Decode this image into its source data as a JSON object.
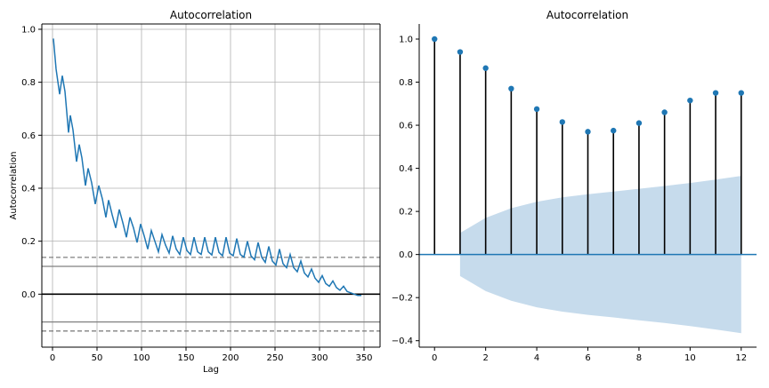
{
  "chart_data": [
    {
      "type": "line",
      "title": "Autocorrelation",
      "xlabel": "Lag",
      "ylabel": "Autocorrelation",
      "xlim": [
        -12,
        368
      ],
      "ylim": [
        -0.2,
        1.02
      ],
      "xticks": [
        0,
        50,
        100,
        150,
        200,
        250,
        300,
        350
      ],
      "yticks": [
        0.0,
        0.2,
        0.4,
        0.6,
        0.8,
        1.0
      ],
      "xtick_labels": [
        "0",
        "50",
        "100",
        "150",
        "200",
        "250",
        "300",
        "350"
      ],
      "ytick_labels": [
        "0.0",
        "0.2",
        "0.4",
        "0.6",
        "0.8",
        "1.0"
      ],
      "grid": true,
      "series_color": "#1f77b4",
      "confidence_lines": [
        {
          "value": 0.139,
          "style": "dashed",
          "color": "#808080"
        },
        {
          "value": 0.105,
          "style": "solid",
          "color": "#808080"
        },
        {
          "value": 0.0,
          "style": "solid",
          "color": "#000000"
        },
        {
          "value": -0.105,
          "style": "solid",
          "color": "#808080"
        },
        {
          "value": -0.139,
          "style": "dashed",
          "color": "#808080"
        }
      ],
      "x": [
        1,
        4,
        8,
        11,
        14,
        18,
        20,
        23,
        27,
        30,
        33,
        37,
        40,
        44,
        48,
        52,
        56,
        60,
        63,
        67,
        71,
        75,
        79,
        83,
        87,
        91,
        95,
        99,
        103,
        107,
        111,
        115,
        119,
        123,
        127,
        131,
        135,
        139,
        143,
        147,
        151,
        155,
        159,
        163,
        167,
        171,
        175,
        179,
        183,
        187,
        191,
        195,
        199,
        203,
        207,
        211,
        215,
        219,
        223,
        227,
        231,
        235,
        239,
        243,
        247,
        251,
        255,
        259,
        263,
        267,
        271,
        275,
        279,
        283,
        287,
        291,
        295,
        299,
        303,
        307,
        311,
        315,
        319,
        323,
        327,
        331,
        335,
        339,
        343,
        347
      ],
      "y": [
        0.965,
        0.85,
        0.755,
        0.825,
        0.765,
        0.61,
        0.675,
        0.62,
        0.5,
        0.565,
        0.515,
        0.41,
        0.475,
        0.42,
        0.34,
        0.41,
        0.36,
        0.29,
        0.355,
        0.3,
        0.25,
        0.32,
        0.27,
        0.215,
        0.29,
        0.25,
        0.195,
        0.265,
        0.22,
        0.17,
        0.24,
        0.2,
        0.16,
        0.225,
        0.185,
        0.155,
        0.22,
        0.17,
        0.15,
        0.215,
        0.165,
        0.15,
        0.215,
        0.16,
        0.15,
        0.215,
        0.16,
        0.148,
        0.215,
        0.158,
        0.145,
        0.215,
        0.155,
        0.145,
        0.21,
        0.15,
        0.14,
        0.2,
        0.145,
        0.13,
        0.195,
        0.14,
        0.12,
        0.18,
        0.125,
        0.11,
        0.17,
        0.115,
        0.1,
        0.15,
        0.1,
        0.085,
        0.125,
        0.08,
        0.065,
        0.095,
        0.06,
        0.045,
        0.07,
        0.04,
        0.03,
        0.05,
        0.025,
        0.015,
        0.03,
        0.01,
        0.005,
        0.0,
        -0.005,
        -0.005
      ]
    },
    {
      "type": "stem",
      "title": "Autocorrelation",
      "xlim": [
        -0.6,
        12.6
      ],
      "ylim": [
        -0.43,
        1.07
      ],
      "xticks": [
        0,
        2,
        4,
        6,
        8,
        10,
        12
      ],
      "yticks": [
        -0.4,
        -0.2,
        0.0,
        0.2,
        0.4,
        0.6,
        0.8,
        1.0
      ],
      "xtick_labels": [
        "0",
        "2",
        "4",
        "6",
        "8",
        "10",
        "12"
      ],
      "ytick_labels": [
        "−0.4",
        "−0.2",
        "0.0",
        "0.2",
        "0.4",
        "0.6",
        "0.8",
        "1.0"
      ],
      "grid": false,
      "marker_color": "#1f77b4",
      "stem_color": "#000000",
      "band_color": "#c6dbec",
      "x": [
        0,
        1,
        2,
        3,
        4,
        5,
        6,
        7,
        8,
        9,
        10,
        11,
        12
      ],
      "values": [
        1.0,
        0.94,
        0.865,
        0.77,
        0.675,
        0.615,
        0.57,
        0.575,
        0.61,
        0.66,
        0.715,
        0.75,
        0.75
      ],
      "confidence_band": {
        "x": [
          1,
          2,
          3,
          4,
          5,
          6,
          7,
          8,
          9,
          10,
          11,
          12
        ],
        "upper": [
          0.1,
          0.17,
          0.215,
          0.245,
          0.265,
          0.28,
          0.292,
          0.305,
          0.318,
          0.332,
          0.348,
          0.365
        ]
      }
    }
  ]
}
